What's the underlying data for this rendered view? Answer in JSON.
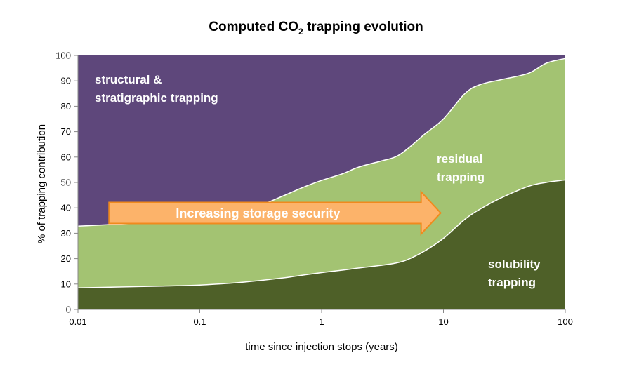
{
  "chart_data": {
    "type": "area",
    "title_main": "Computed CO",
    "title_sub": "2",
    "title_rest": " trapping evolution",
    "xlabel": "time since injection stops (years)",
    "ylabel": "% of trapping contribution",
    "x_scale": "log",
    "xlim": [
      0.01,
      100
    ],
    "ylim": [
      0,
      100
    ],
    "x_ticks": [
      0.01,
      0.1,
      1,
      10,
      100
    ],
    "x_tick_labels": [
      "0.01",
      "0.1",
      "1",
      "10",
      "100"
    ],
    "y_ticks": [
      0,
      10,
      20,
      30,
      40,
      50,
      60,
      70,
      80,
      90,
      100
    ],
    "y_tick_labels": [
      "0",
      "10",
      "20",
      "30",
      "40",
      "50",
      "60",
      "70",
      "80",
      "90",
      "100"
    ],
    "grid": false,
    "stacked": true,
    "x": [
      0.01,
      0.02,
      0.05,
      0.1,
      0.2,
      0.3,
      0.5,
      0.7,
      1,
      1.5,
      2,
      3,
      4,
      5,
      7,
      10,
      15,
      20,
      30,
      50,
      70,
      100
    ],
    "series": [
      {
        "name": "solubility trapping",
        "label_lines": [
          "solubility",
          "trapping"
        ],
        "color": "#4e6028",
        "cumulative": [
          8.5,
          8.8,
          9.2,
          9.6,
          10.5,
          11.3,
          12.5,
          13.5,
          14.5,
          15.5,
          16.3,
          17.3,
          18.2,
          19.5,
          23,
          28,
          35.5,
          39.5,
          44,
          48.5,
          50,
          51
        ]
      },
      {
        "name": "residual trapping",
        "label_lines": [
          "residual",
          "trapping"
        ],
        "color": "#a3c372",
        "cumulative": [
          32.8,
          33.5,
          34.5,
          35.5,
          37.5,
          40.5,
          45,
          48,
          50.8,
          53.5,
          56,
          58.3,
          60,
          63,
          69,
          75,
          85,
          88.5,
          90.5,
          93,
          97,
          98.8
        ]
      },
      {
        "name": "structural & stratigraphic trapping",
        "label_lines": [
          "structural &",
          "stratigraphic trapping"
        ],
        "color": "#5e477b",
        "cumulative": [
          100,
          100,
          100,
          100,
          100,
          100,
          100,
          100,
          100,
          100,
          100,
          100,
          100,
          100,
          100,
          100,
          100,
          100,
          100,
          100,
          100,
          100
        ]
      }
    ],
    "annotation": {
      "text": "Increasing storage security",
      "x_start": 0.018,
      "x_end": 9.5,
      "y_center": 38,
      "fill": "#fcb36a",
      "stroke": "#f08a1d"
    }
  }
}
